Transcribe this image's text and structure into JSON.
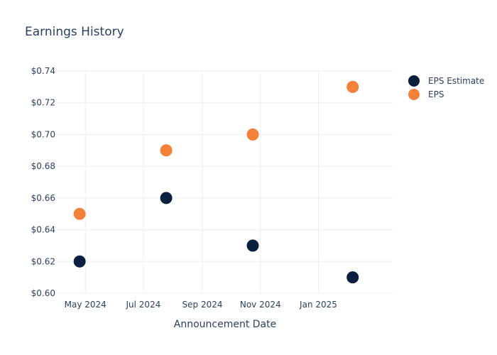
{
  "chart_data": {
    "type": "scatter",
    "title": "Earnings History",
    "xlabel": "Announcement Date",
    "ylabel": "",
    "x_axis_type": "date",
    "xlim": [
      "2024-04-01",
      "2025-03-20"
    ],
    "ylim": [
      0.6,
      0.74
    ],
    "grid": true,
    "legend_position": "top-right",
    "x_ticks": [
      {
        "date": "2024-05-01",
        "label": "May 2024"
      },
      {
        "date": "2024-07-01",
        "label": "Jul 2024"
      },
      {
        "date": "2024-09-01",
        "label": "Sep 2024"
      },
      {
        "date": "2024-11-01",
        "label": "Nov 2024"
      },
      {
        "date": "2025-01-01",
        "label": "Jan 2025"
      }
    ],
    "y_ticks": [
      {
        "value": 0.6,
        "label": "$0.60"
      },
      {
        "value": 0.62,
        "label": "$0.62"
      },
      {
        "value": 0.64,
        "label": "$0.64"
      },
      {
        "value": 0.66,
        "label": "$0.66"
      },
      {
        "value": 0.68,
        "label": "$0.68"
      },
      {
        "value": 0.7,
        "label": "$0.70"
      },
      {
        "value": 0.72,
        "label": "$0.72"
      },
      {
        "value": 0.74,
        "label": "$0.74"
      }
    ],
    "series": [
      {
        "name": "EPS Estimate",
        "color": "#0b1f3f",
        "points": [
          {
            "x": "2024-04-25",
            "y": 0.62
          },
          {
            "x": "2024-07-25",
            "y": 0.66
          },
          {
            "x": "2024-10-24",
            "y": 0.63
          },
          {
            "x": "2025-02-06",
            "y": 0.61
          }
        ]
      },
      {
        "name": "EPS",
        "color": "#f4813a",
        "points": [
          {
            "x": "2024-04-25",
            "y": 0.65
          },
          {
            "x": "2024-07-25",
            "y": 0.69
          },
          {
            "x": "2024-10-24",
            "y": 0.7
          },
          {
            "x": "2025-02-06",
            "y": 0.73
          }
        ]
      }
    ]
  }
}
